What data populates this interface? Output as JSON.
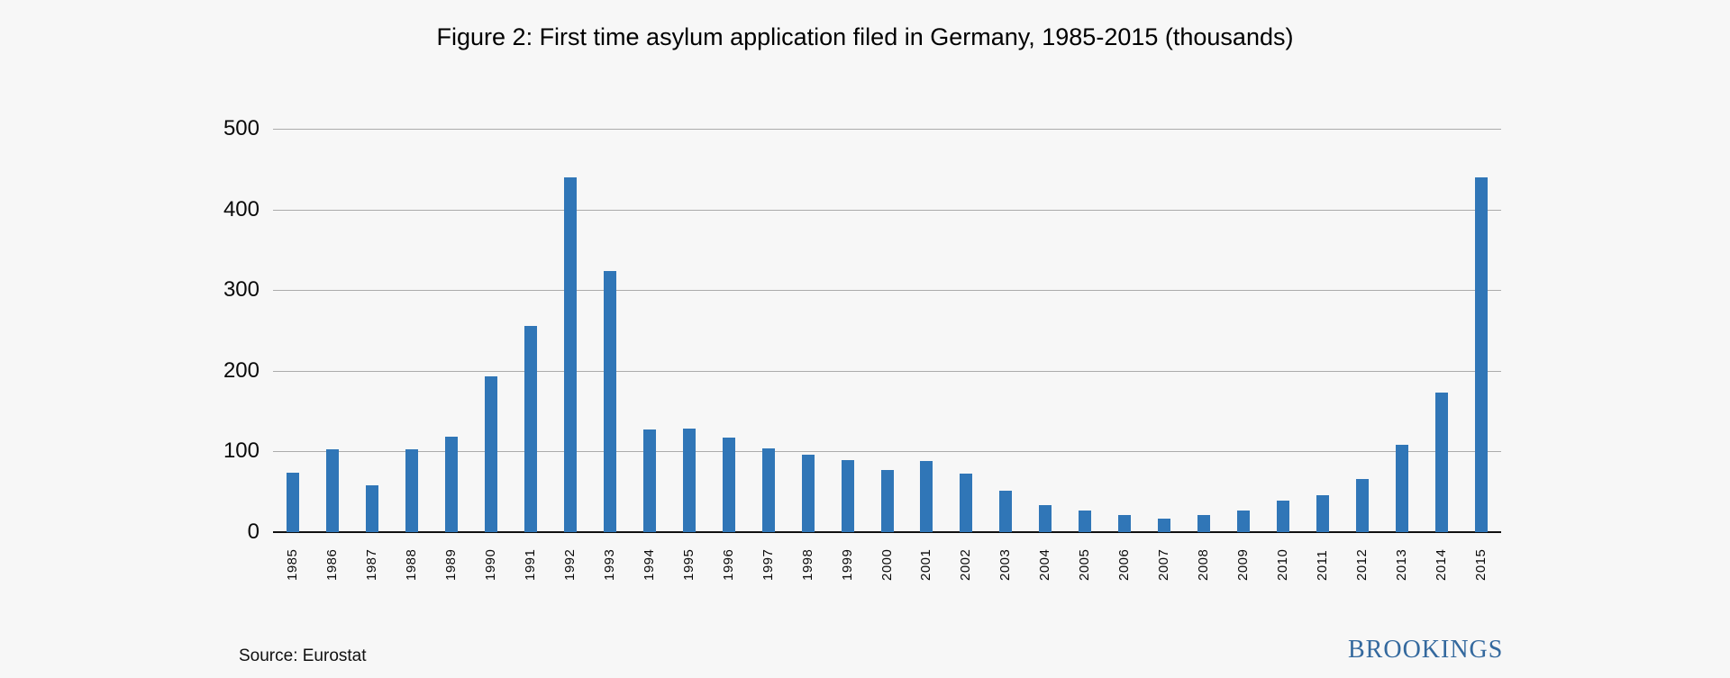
{
  "title": "Figure 2: First time asylum application filed in Germany, 1985-2015 (thousands)",
  "source": "Source: Eurostat",
  "logo": "BROOKINGS",
  "colors": {
    "background": "#f7f7f7",
    "bar": "#3076b7",
    "gridline": "#ababab",
    "axis": "#111111",
    "logo_blue": "#34699e"
  },
  "chart_data": {
    "type": "bar",
    "title": "Figure 2: First time asylum application filed in Germany, 1985-2015 (thousands)",
    "categories": [
      "1985",
      "1986",
      "1987",
      "1988",
      "1989",
      "1990",
      "1991",
      "1992",
      "1993",
      "1994",
      "1995",
      "1996",
      "1997",
      "1998",
      "1999",
      "2000",
      "2001",
      "2002",
      "2003",
      "2004",
      "2005",
      "2006",
      "2007",
      "2008",
      "2009",
      "2010",
      "2011",
      "2012",
      "2013",
      "2014",
      "2015"
    ],
    "values": [
      74,
      103,
      58,
      103,
      118,
      193,
      256,
      440,
      324,
      127,
      128,
      117,
      104,
      96,
      89,
      77,
      88,
      73,
      51,
      33,
      27,
      21,
      17,
      21,
      27,
      39,
      46,
      66,
      108,
      173,
      440
    ],
    "xlabel": "",
    "ylabel": "",
    "ylim": [
      0,
      500
    ],
    "yticks": [
      0,
      100,
      200,
      300,
      400,
      500
    ],
    "grid": true,
    "legend": "none",
    "annotations": {
      "source_note": "Source: Eurostat",
      "branding": "BROOKINGS"
    }
  }
}
